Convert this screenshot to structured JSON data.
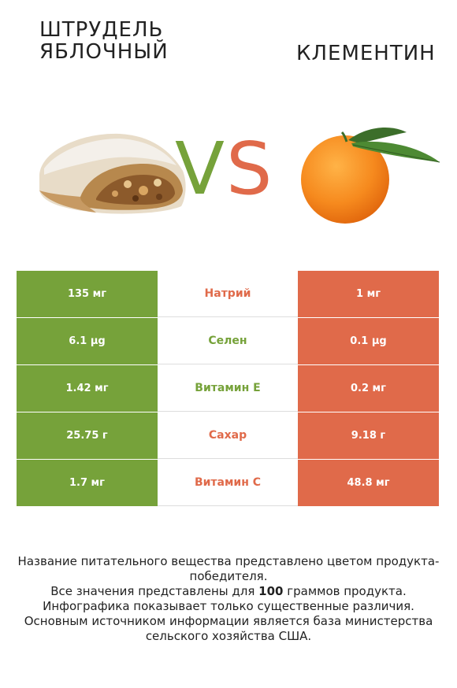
{
  "header": {
    "left_title": "ШТРУДЕЛЬ ЯБЛОЧНЫЙ",
    "right_title": "КЛЕМЕНТИН",
    "vs_v": "V",
    "vs_s": "S"
  },
  "images": {
    "left": "strudel-image",
    "right": "clementine-image"
  },
  "colors": {
    "left": "#76a23a",
    "right": "#e06a4a"
  },
  "rows": [
    {
      "left": "135 мг",
      "nutrient": "Натрий",
      "right": "1 мг",
      "winner": "right"
    },
    {
      "left": "6.1 µg",
      "nutrient": "Селен",
      "right": "0.1 µg",
      "winner": "left"
    },
    {
      "left": "1.42 мг",
      "nutrient": "Витамин E",
      "right": "0.2 мг",
      "winner": "left"
    },
    {
      "left": "25.75 г",
      "nutrient": "Сахар",
      "right": "9.18 г",
      "winner": "right"
    },
    {
      "left": "1.7 мг",
      "nutrient": "Витамин C",
      "right": "48.8 мг",
      "winner": "right"
    }
  ],
  "footer": {
    "line1": "Название питательного вещества представлено цветом продукта-победителя.",
    "line2_pre": "Все значения представлены для ",
    "line2_bold": "100",
    "line2_post": " граммов продукта.",
    "line3": "Инфографика показывает только существенные различия.",
    "line4": "Основным источником информации является база министерства сельского хозяйства США."
  }
}
